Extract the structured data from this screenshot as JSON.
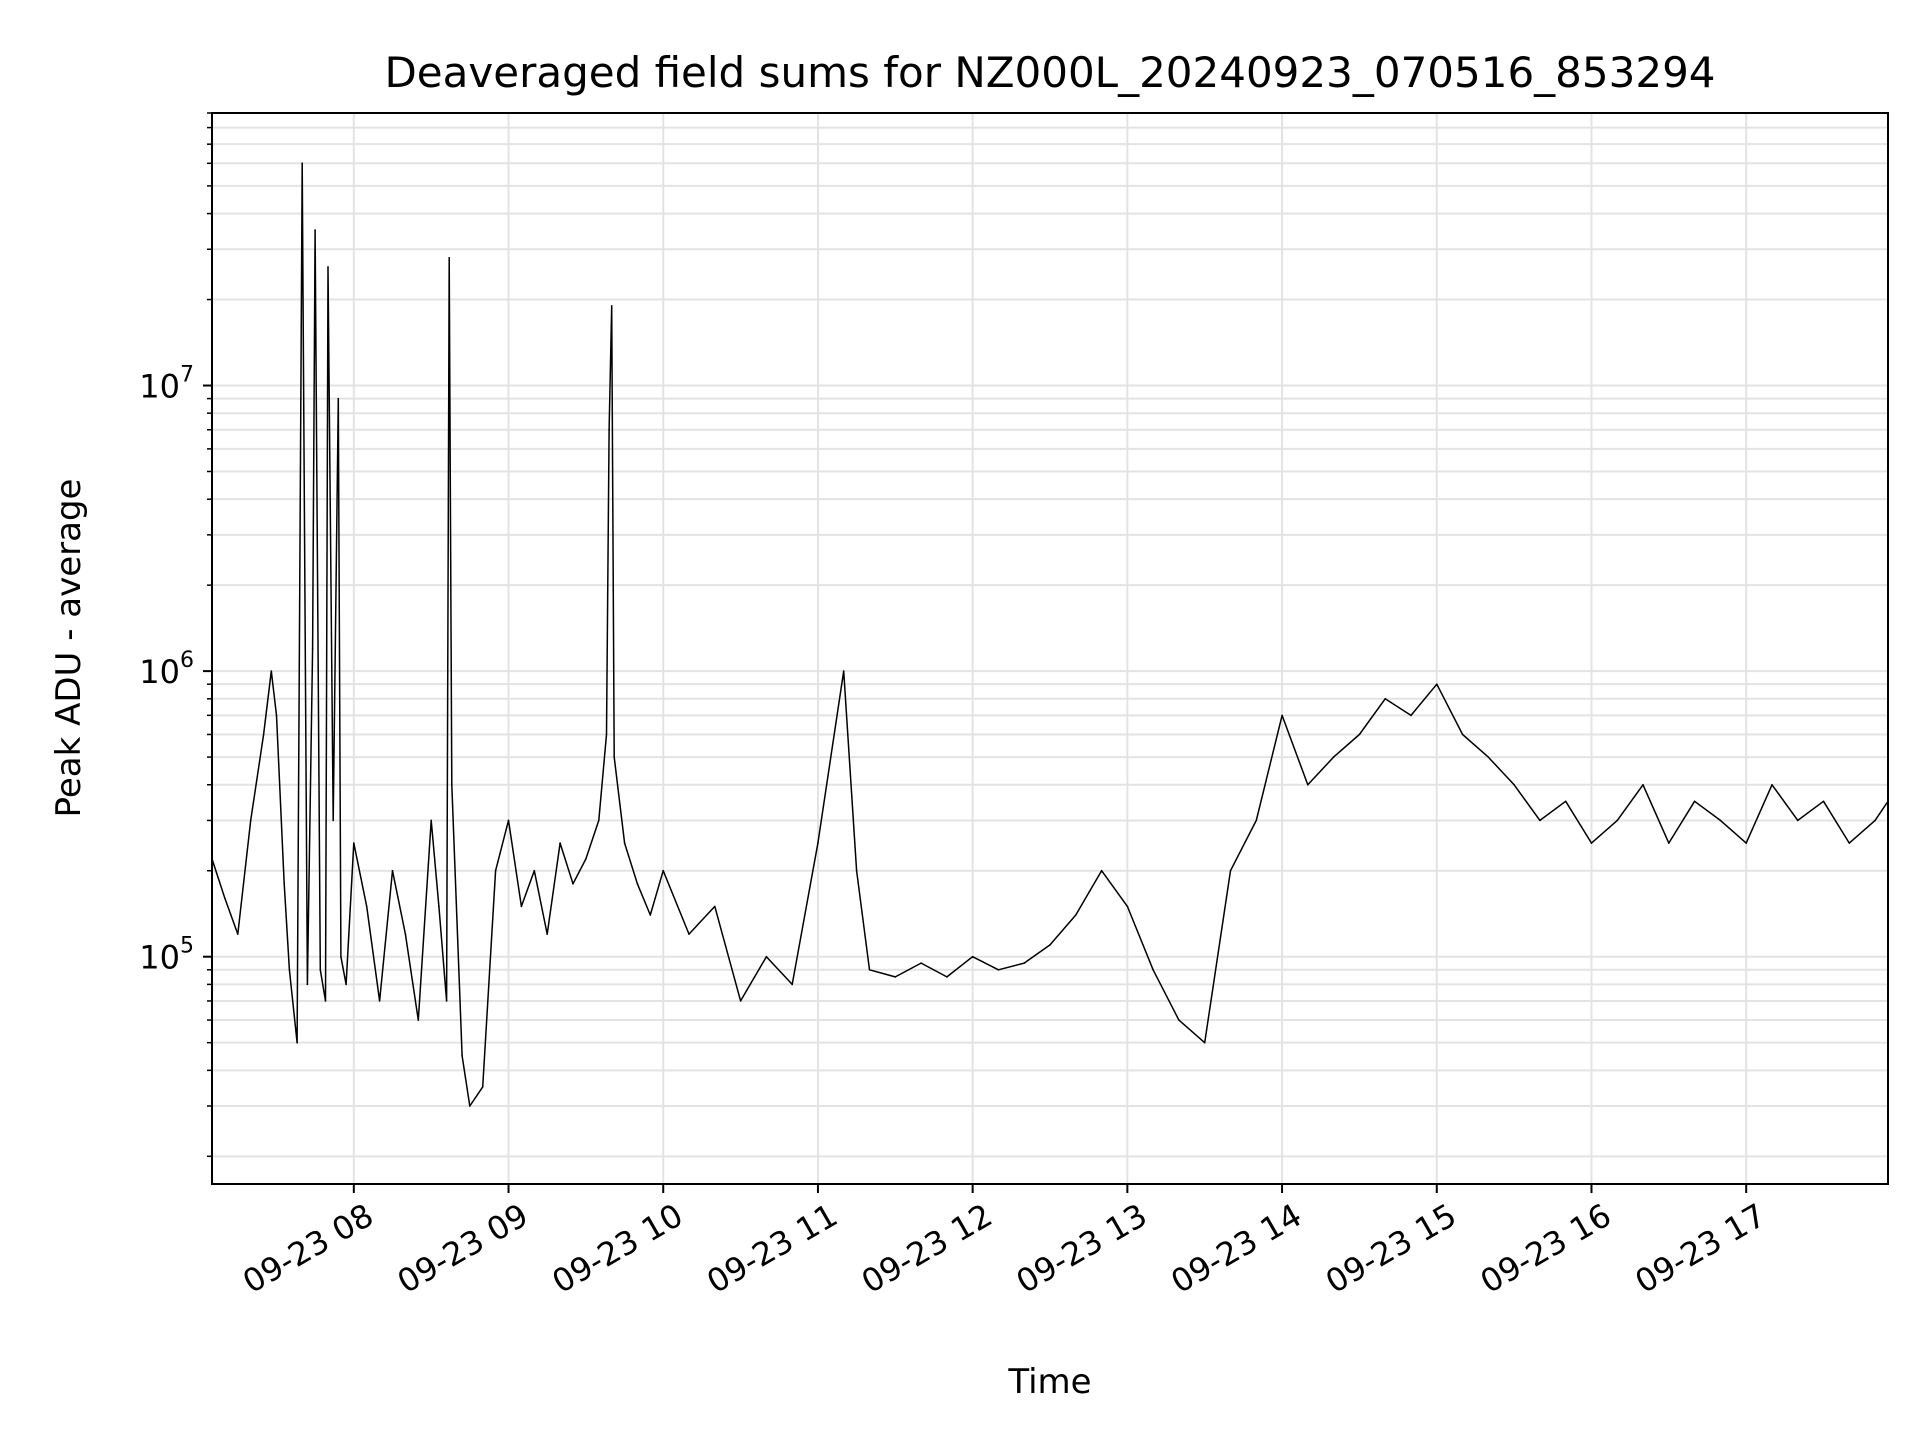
{
  "chart_data": {
    "type": "line",
    "title": "Deaveraged field sums for NZ000L_20240923_070516_853294",
    "xlabel": "Time",
    "ylabel": "Peak ADU - average",
    "x_range": [
      "2024-09-23 07:05",
      "2024-09-23 17:55"
    ],
    "y_scale": "log",
    "ylim": [
      16000,
      90000000
    ],
    "grid": true,
    "line_color": "#000000",
    "x_ticks": [
      {
        "value": "2024-09-23 08:00",
        "label": "09-23 08"
      },
      {
        "value": "2024-09-23 09:00",
        "label": "09-23 09"
      },
      {
        "value": "2024-09-23 10:00",
        "label": "09-23 10"
      },
      {
        "value": "2024-09-23 11:00",
        "label": "09-23 11"
      },
      {
        "value": "2024-09-23 12:00",
        "label": "09-23 12"
      },
      {
        "value": "2024-09-23 13:00",
        "label": "09-23 13"
      },
      {
        "value": "2024-09-23 14:00",
        "label": "09-23 14"
      },
      {
        "value": "2024-09-23 15:00",
        "label": "09-23 15"
      },
      {
        "value": "2024-09-23 16:00",
        "label": "09-23 16"
      },
      {
        "value": "2024-09-23 17:00",
        "label": "09-23 17"
      }
    ],
    "y_ticks": [
      {
        "value": 100000,
        "base": "10",
        "exp": "5"
      },
      {
        "value": 1000000,
        "base": "10",
        "exp": "6"
      },
      {
        "value": 10000000,
        "base": "10",
        "exp": "7"
      }
    ],
    "series": [
      {
        "x": [
          "2024-09-23 07:05",
          "2024-09-23 07:10",
          "2024-09-23 07:15",
          "2024-09-23 07:20",
          "2024-09-23 07:25",
          "2024-09-23 07:28",
          "2024-09-23 07:30",
          "2024-09-23 07:33",
          "2024-09-23 07:35",
          "2024-09-23 07:38",
          "2024-09-23 07:40",
          "2024-09-23 07:42",
          "2024-09-23 07:44",
          "2024-09-23 07:45",
          "2024-09-23 07:47",
          "2024-09-23 07:49",
          "2024-09-23 07:50",
          "2024-09-23 07:52",
          "2024-09-23 07:54",
          "2024-09-23 07:55",
          "2024-09-23 07:57",
          "2024-09-23 08:00",
          "2024-09-23 08:05",
          "2024-09-23 08:10",
          "2024-09-23 08:15",
          "2024-09-23 08:20",
          "2024-09-23 08:25",
          "2024-09-23 08:30",
          "2024-09-23 08:33",
          "2024-09-23 08:36",
          "2024-09-23 08:37",
          "2024-09-23 08:38",
          "2024-09-23 08:42",
          "2024-09-23 08:45",
          "2024-09-23 08:50",
          "2024-09-23 08:55",
          "2024-09-23 09:00",
          "2024-09-23 09:05",
          "2024-09-23 09:10",
          "2024-09-23 09:15",
          "2024-09-23 09:20",
          "2024-09-23 09:25",
          "2024-09-23 09:30",
          "2024-09-23 09:35",
          "2024-09-23 09:38",
          "2024-09-23 09:39",
          "2024-09-23 09:40",
          "2024-09-23 09:41",
          "2024-09-23 09:45",
          "2024-09-23 09:50",
          "2024-09-23 09:55",
          "2024-09-23 10:00",
          "2024-09-23 10:10",
          "2024-09-23 10:20",
          "2024-09-23 10:30",
          "2024-09-23 10:40",
          "2024-09-23 10:50",
          "2024-09-23 11:00",
          "2024-09-23 11:10",
          "2024-09-23 11:15",
          "2024-09-23 11:20",
          "2024-09-23 11:30",
          "2024-09-23 11:40",
          "2024-09-23 11:50",
          "2024-09-23 12:00",
          "2024-09-23 12:10",
          "2024-09-23 12:20",
          "2024-09-23 12:30",
          "2024-09-23 12:40",
          "2024-09-23 12:50",
          "2024-09-23 13:00",
          "2024-09-23 13:10",
          "2024-09-23 13:20",
          "2024-09-23 13:30",
          "2024-09-23 13:40",
          "2024-09-23 13:50",
          "2024-09-23 14:00",
          "2024-09-23 14:10",
          "2024-09-23 14:20",
          "2024-09-23 14:30",
          "2024-09-23 14:40",
          "2024-09-23 14:50",
          "2024-09-23 15:00",
          "2024-09-23 15:10",
          "2024-09-23 15:20",
          "2024-09-23 15:30",
          "2024-09-23 15:40",
          "2024-09-23 15:50",
          "2024-09-23 16:00",
          "2024-09-23 16:10",
          "2024-09-23 16:20",
          "2024-09-23 16:30",
          "2024-09-23 16:40",
          "2024-09-23 16:50",
          "2024-09-23 17:00",
          "2024-09-23 17:10",
          "2024-09-23 17:20",
          "2024-09-23 17:30",
          "2024-09-23 17:40",
          "2024-09-23 17:50",
          "2024-09-23 17:55"
        ],
        "y": [
          220000,
          160000,
          120000,
          300000,
          600000,
          1000000,
          700000,
          180000,
          90000,
          50000,
          60000000,
          80000,
          1200000,
          35000000,
          90000,
          70000,
          26000000,
          300000,
          9000000,
          100000,
          80000,
          250000,
          150000,
          70000,
          200000,
          120000,
          60000,
          300000,
          150000,
          70000,
          28000000,
          400000,
          45000,
          30000,
          35000,
          200000,
          300000,
          150000,
          200000,
          120000,
          250000,
          180000,
          220000,
          300000,
          600000,
          7000000,
          19000000,
          500000,
          250000,
          180000,
          140000,
          200000,
          120000,
          150000,
          70000,
          100000,
          80000,
          250000,
          1000000,
          200000,
          90000,
          85000,
          95000,
          85000,
          100000,
          90000,
          95000,
          110000,
          140000,
          200000,
          150000,
          90000,
          60000,
          50000,
          200000,
          300000,
          700000,
          400000,
          500000,
          600000,
          800000,
          700000,
          900000,
          600000,
          500000,
          400000,
          300000,
          350000,
          250000,
          300000,
          400000,
          250000,
          350000,
          300000,
          250000,
          400000,
          300000,
          350000,
          250000,
          300000,
          350000
        ]
      }
    ]
  }
}
